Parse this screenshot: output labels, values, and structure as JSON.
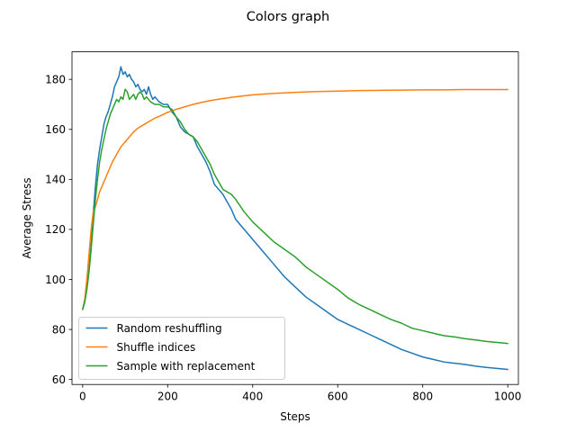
{
  "chart_data": {
    "type": "line",
    "title": "Colors graph",
    "xlabel": "Steps",
    "ylabel": "Average Stress",
    "xlim": [
      -25,
      1025
    ],
    "ylim": [
      58,
      191
    ],
    "xticks": [
      0,
      200,
      400,
      600,
      800,
      1000
    ],
    "yticks": [
      60,
      80,
      100,
      120,
      140,
      160,
      180
    ],
    "grid": false,
    "legend_position": "lower-left",
    "series": [
      {
        "name": "Random reshuffling",
        "color": "#1f77b4",
        "points": [
          [
            0,
            88
          ],
          [
            5,
            91
          ],
          [
            10,
            97
          ],
          [
            15,
            104
          ],
          [
            20,
            114
          ],
          [
            25,
            126
          ],
          [
            30,
            137
          ],
          [
            35,
            146
          ],
          [
            40,
            152
          ],
          [
            45,
            157
          ],
          [
            50,
            162
          ],
          [
            55,
            165
          ],
          [
            60,
            167
          ],
          [
            65,
            170
          ],
          [
            70,
            173
          ],
          [
            75,
            177
          ],
          [
            80,
            179
          ],
          [
            85,
            181
          ],
          [
            90,
            185
          ],
          [
            95,
            182
          ],
          [
            100,
            183
          ],
          [
            105,
            181
          ],
          [
            110,
            182
          ],
          [
            115,
            180
          ],
          [
            120,
            179
          ],
          [
            125,
            177
          ],
          [
            130,
            178
          ],
          [
            135,
            176
          ],
          [
            140,
            175
          ],
          [
            145,
            176
          ],
          [
            150,
            174
          ],
          [
            155,
            177
          ],
          [
            160,
            174
          ],
          [
            165,
            172
          ],
          [
            170,
            173
          ],
          [
            180,
            171
          ],
          [
            190,
            170
          ],
          [
            200,
            170
          ],
          [
            210,
            167
          ],
          [
            220,
            165
          ],
          [
            230,
            161
          ],
          [
            240,
            159
          ],
          [
            250,
            158
          ],
          [
            260,
            157
          ],
          [
            270,
            153
          ],
          [
            280,
            150
          ],
          [
            290,
            147
          ],
          [
            300,
            143
          ],
          [
            310,
            138
          ],
          [
            320,
            136
          ],
          [
            330,
            134
          ],
          [
            340,
            131
          ],
          [
            350,
            128
          ],
          [
            360,
            124
          ],
          [
            380,
            120
          ],
          [
            400,
            116
          ],
          [
            425,
            111
          ],
          [
            450,
            106
          ],
          [
            475,
            101
          ],
          [
            500,
            97
          ],
          [
            525,
            93
          ],
          [
            550,
            90
          ],
          [
            575,
            87
          ],
          [
            600,
            84
          ],
          [
            625,
            82
          ],
          [
            650,
            80
          ],
          [
            675,
            78
          ],
          [
            700,
            76
          ],
          [
            725,
            74
          ],
          [
            750,
            72
          ],
          [
            775,
            70.5
          ],
          [
            800,
            69
          ],
          [
            825,
            68
          ],
          [
            850,
            67
          ],
          [
            875,
            66.5
          ],
          [
            900,
            66
          ],
          [
            925,
            65.3
          ],
          [
            950,
            64.8
          ],
          [
            975,
            64.4
          ],
          [
            1000,
            64
          ]
        ]
      },
      {
        "name": "Shuffle indices",
        "color": "#ff7f0e",
        "points": [
          [
            0,
            88
          ],
          [
            5,
            92
          ],
          [
            10,
            100
          ],
          [
            15,
            110
          ],
          [
            20,
            120
          ],
          [
            25,
            127
          ],
          [
            30,
            129
          ],
          [
            35,
            132
          ],
          [
            40,
            135
          ],
          [
            50,
            139
          ],
          [
            60,
            143
          ],
          [
            70,
            147
          ],
          [
            80,
            150
          ],
          [
            90,
            153
          ],
          [
            100,
            155
          ],
          [
            110,
            157
          ],
          [
            120,
            159
          ],
          [
            130,
            160.5
          ],
          [
            140,
            161.5
          ],
          [
            150,
            162.5
          ],
          [
            160,
            163.5
          ],
          [
            170,
            164.5
          ],
          [
            180,
            165.2
          ],
          [
            190,
            166
          ],
          [
            200,
            166.8
          ],
          [
            220,
            168
          ],
          [
            240,
            169
          ],
          [
            260,
            170
          ],
          [
            280,
            170.8
          ],
          [
            300,
            171.5
          ],
          [
            325,
            172.2
          ],
          [
            350,
            172.8
          ],
          [
            375,
            173.3
          ],
          [
            400,
            173.8
          ],
          [
            450,
            174.4
          ],
          [
            500,
            174.8
          ],
          [
            550,
            175.1
          ],
          [
            600,
            175.3
          ],
          [
            650,
            175.5
          ],
          [
            700,
            175.6
          ],
          [
            750,
            175.7
          ],
          [
            800,
            175.8
          ],
          [
            850,
            175.8
          ],
          [
            900,
            175.9
          ],
          [
            950,
            175.9
          ],
          [
            1000,
            175.9
          ]
        ]
      },
      {
        "name": "Sample with replacement",
        "color": "#2ca02c",
        "points": [
          [
            0,
            88
          ],
          [
            5,
            91
          ],
          [
            10,
            96
          ],
          [
            15,
            103
          ],
          [
            20,
            112
          ],
          [
            25,
            122
          ],
          [
            30,
            132
          ],
          [
            35,
            140
          ],
          [
            40,
            147
          ],
          [
            45,
            152
          ],
          [
            50,
            156
          ],
          [
            55,
            160
          ],
          [
            60,
            163
          ],
          [
            65,
            166
          ],
          [
            70,
            168
          ],
          [
            75,
            170
          ],
          [
            80,
            172
          ],
          [
            85,
            171
          ],
          [
            90,
            173
          ],
          [
            95,
            172
          ],
          [
            100,
            176
          ],
          [
            105,
            175
          ],
          [
            110,
            172
          ],
          [
            115,
            173
          ],
          [
            120,
            174
          ],
          [
            125,
            172
          ],
          [
            130,
            174
          ],
          [
            135,
            175
          ],
          [
            140,
            174
          ],
          [
            145,
            172
          ],
          [
            150,
            173
          ],
          [
            160,
            171
          ],
          [
            170,
            170
          ],
          [
            180,
            170
          ],
          [
            190,
            169
          ],
          [
            200,
            169
          ],
          [
            210,
            168
          ],
          [
            220,
            165
          ],
          [
            230,
            163
          ],
          [
            240,
            160
          ],
          [
            250,
            158
          ],
          [
            260,
            157
          ],
          [
            270,
            155
          ],
          [
            280,
            152
          ],
          [
            290,
            149
          ],
          [
            300,
            146
          ],
          [
            310,
            142
          ],
          [
            320,
            139
          ],
          [
            330,
            136
          ],
          [
            340,
            135
          ],
          [
            350,
            134
          ],
          [
            360,
            132
          ],
          [
            380,
            127
          ],
          [
            400,
            123
          ],
          [
            425,
            119
          ],
          [
            450,
            115
          ],
          [
            475,
            112
          ],
          [
            500,
            109
          ],
          [
            525,
            105
          ],
          [
            550,
            102
          ],
          [
            575,
            99
          ],
          [
            600,
            96
          ],
          [
            625,
            92.5
          ],
          [
            650,
            90
          ],
          [
            675,
            88
          ],
          [
            700,
            86
          ],
          [
            725,
            84
          ],
          [
            750,
            82.5
          ],
          [
            775,
            80.5
          ],
          [
            800,
            79.5
          ],
          [
            825,
            78.5
          ],
          [
            850,
            77.5
          ],
          [
            875,
            77
          ],
          [
            900,
            76.3
          ],
          [
            925,
            75.8
          ],
          [
            950,
            75.2
          ],
          [
            975,
            74.8
          ],
          [
            1000,
            74.4
          ]
        ]
      }
    ]
  }
}
